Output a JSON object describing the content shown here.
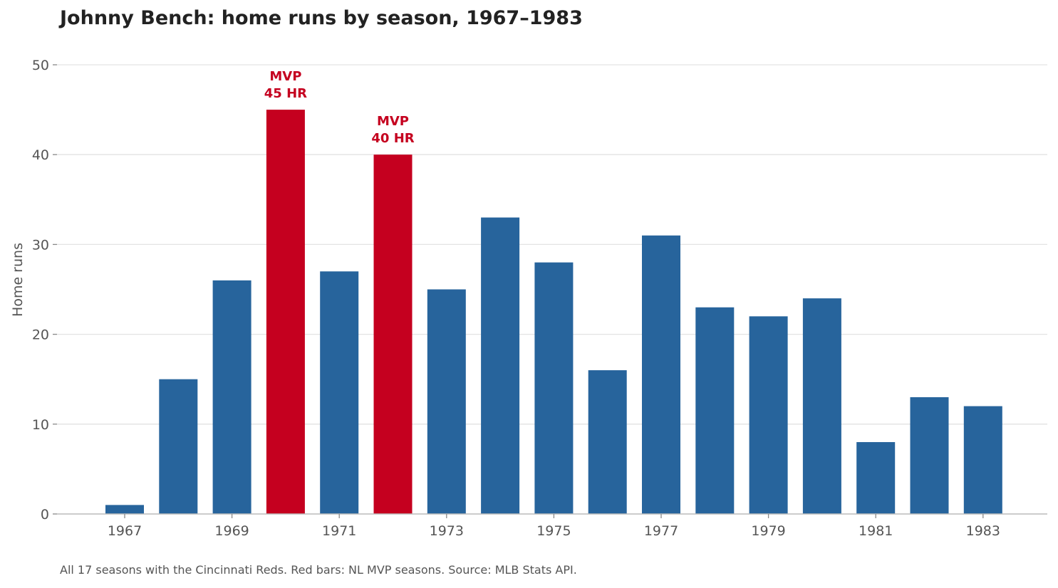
{
  "chart_data": {
    "type": "bar",
    "title": "Johnny Bench: home runs by season, 1967–1983",
    "ylabel": "Home runs",
    "xlabel": "",
    "ylim": [
      0,
      50
    ],
    "yticks": [
      0,
      10,
      20,
      30,
      40,
      50
    ],
    "xtick_labels": [
      "1967",
      "1969",
      "1971",
      "1973",
      "1975",
      "1977",
      "1979",
      "1981",
      "1983"
    ],
    "categories": [
      1967,
      1968,
      1969,
      1970,
      1971,
      1972,
      1973,
      1974,
      1975,
      1976,
      1977,
      1978,
      1979,
      1980,
      1981,
      1982,
      1983
    ],
    "values": [
      1,
      15,
      26,
      45,
      27,
      40,
      25,
      33,
      28,
      16,
      31,
      23,
      22,
      24,
      8,
      13,
      12
    ],
    "highlighted": [
      1970,
      1972
    ],
    "annotations": [
      {
        "x": 1970,
        "lines": [
          "MVP",
          "45 HR"
        ]
      },
      {
        "x": 1972,
        "lines": [
          "MVP",
          "40 HR"
        ]
      }
    ],
    "grid": true,
    "colors": {
      "default": "#27649c",
      "highlight": "#c5001f"
    },
    "footnote": "All 17 seasons with the Cincinnati Reds. Red bars: NL MVP seasons. Source: MLB Stats API."
  }
}
